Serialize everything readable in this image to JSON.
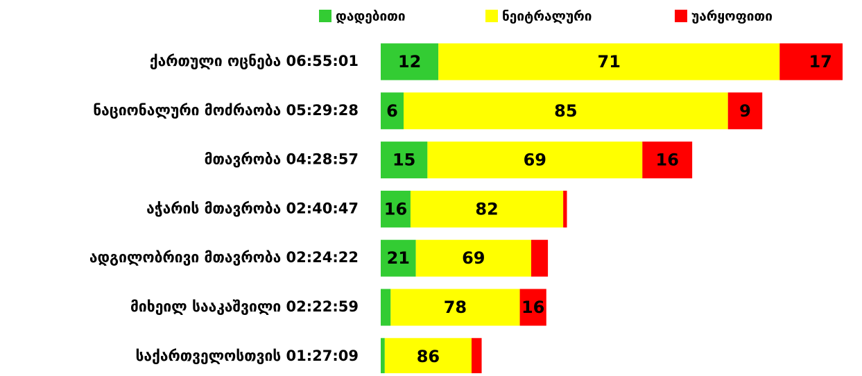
{
  "chart_data": {
    "type": "stacked_barh",
    "categories": [
      "ქართული ოცნება 06:55:01",
      "ნაციონალური მოძრაობა 05:29:28",
      "მთავრობა 04:28:57",
      "აჭარის მთავრობა 02:40:47",
      "ადგილობრივი მთავრობა 02:24:22",
      "მიხეილ სააკაშვილი 02:22:59",
      "საქართველოსთვის  01:27:09"
    ],
    "series": [
      {
        "name": "დადებითი",
        "color": "#33cc33",
        "values": [
          12,
          6,
          15,
          16,
          21,
          6,
          4
        ],
        "value_labels": [
          "12",
          "6",
          "15",
          "16",
          "21",
          null,
          null
        ]
      },
      {
        "name": "ნეიტრალური",
        "color": "#ffff00",
        "values": [
          71,
          85,
          69,
          82,
          69,
          78,
          86
        ],
        "value_labels": [
          "71",
          "85",
          "69",
          "82",
          "69",
          "78",
          "86"
        ]
      },
      {
        "name": "უარყოფითი",
        "color": "#ff0000",
        "values": [
          17,
          9,
          16,
          2,
          10,
          16,
          10
        ],
        "value_labels": [
          "17",
          "9",
          "16",
          null,
          null,
          "16",
          null
        ]
      }
    ],
    "legend": "top"
  }
}
